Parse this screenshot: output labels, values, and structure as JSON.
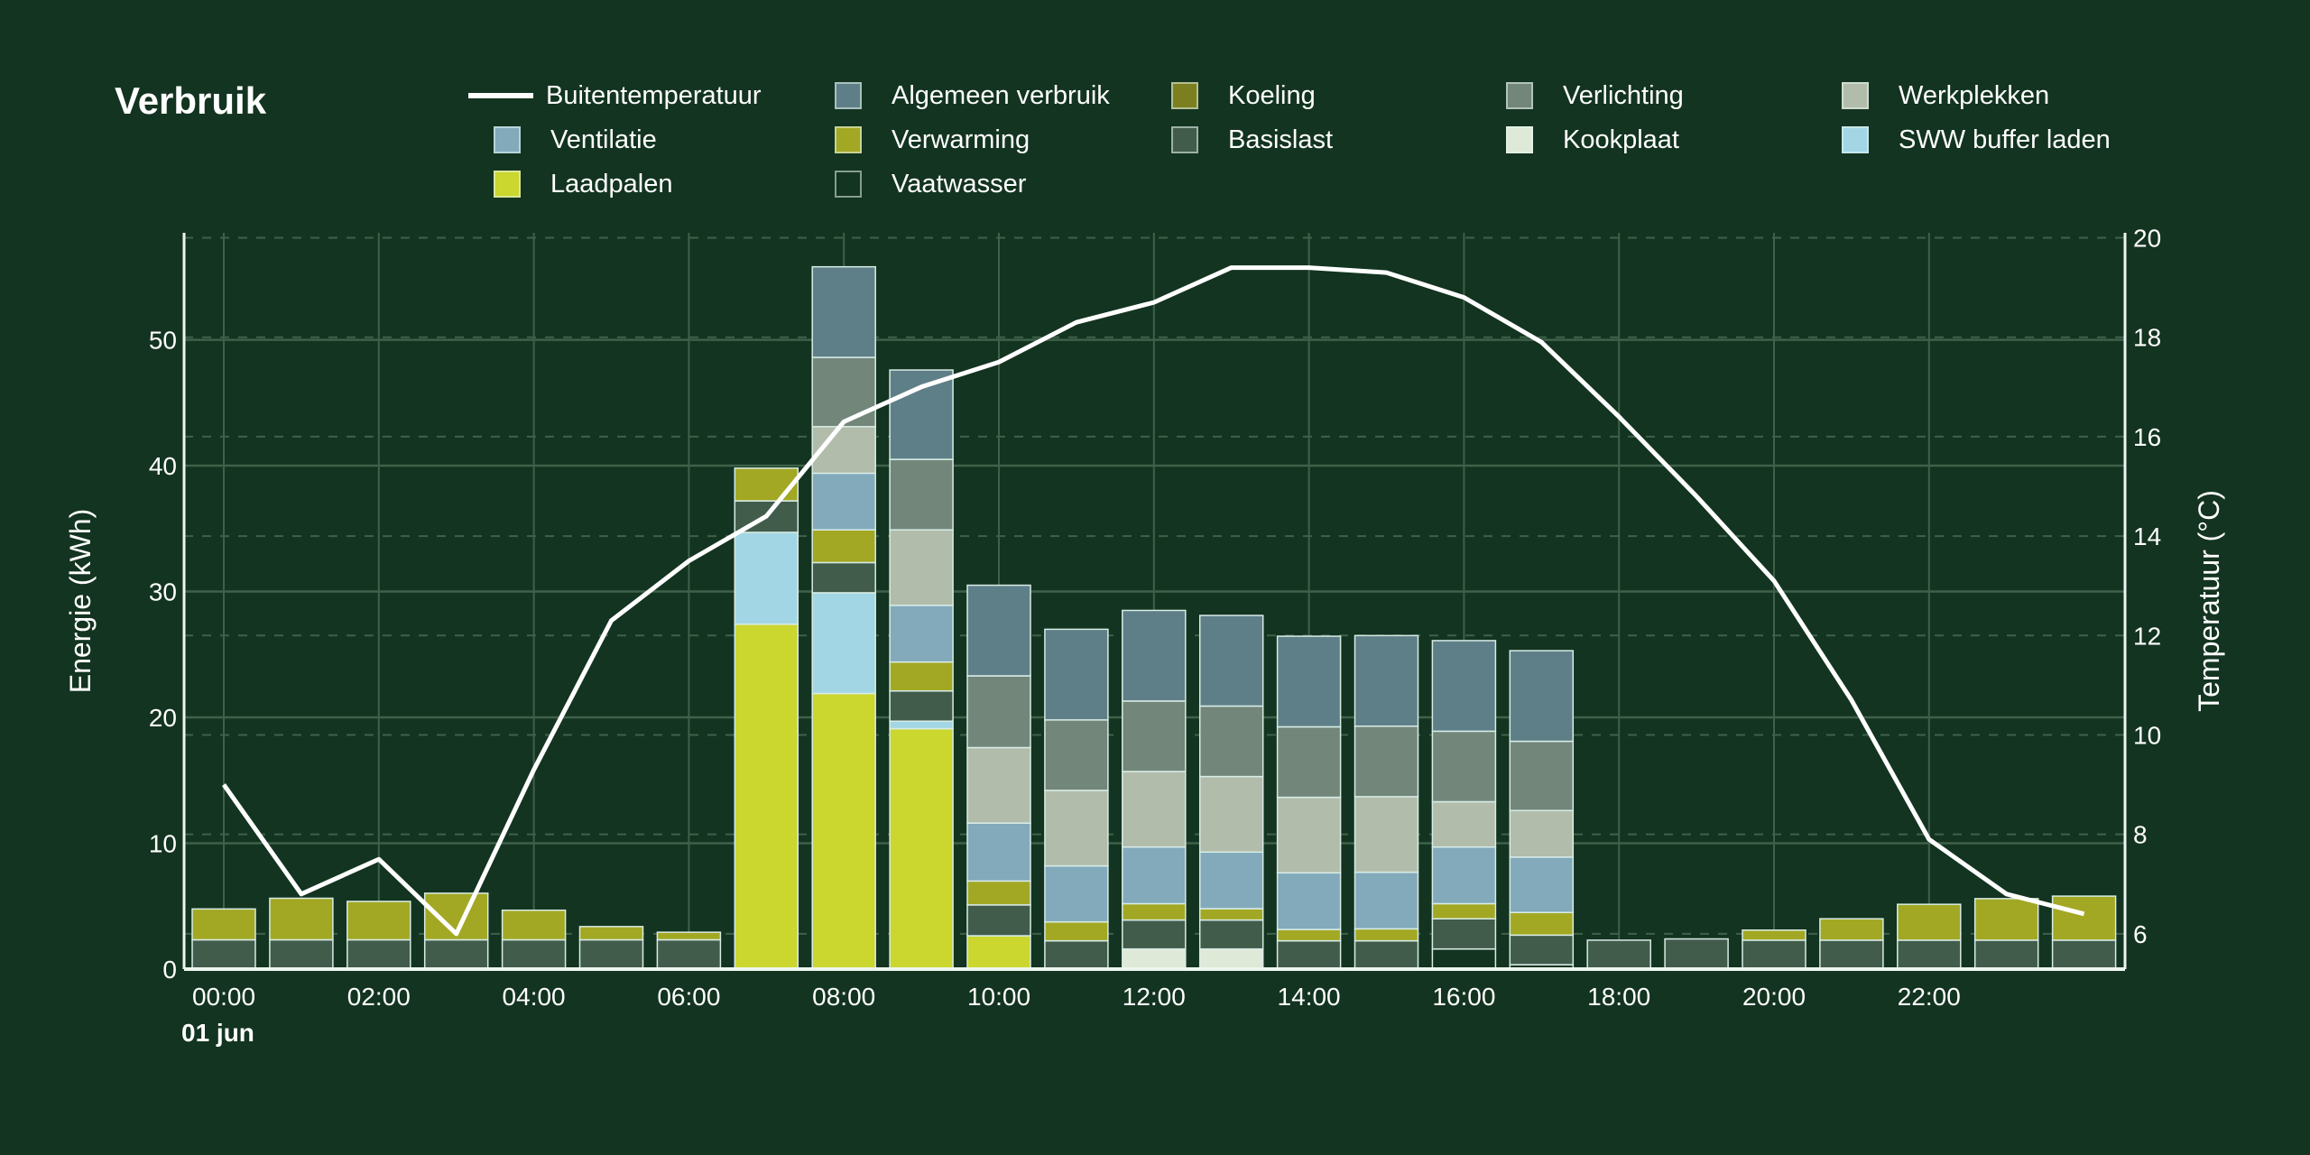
{
  "title": "Verbruik",
  "legend": [
    {
      "label": "Buitentemperatuur",
      "type": "line",
      "color": "#ffffff"
    },
    {
      "label": "Algemeen verbruik",
      "color": "#5f7f88"
    },
    {
      "label": "Koeling",
      "color": "#7b7f1f"
    },
    {
      "label": "Verlichting",
      "color": "#72867a"
    },
    {
      "label": "Werkplekken",
      "color": "#b2bcab"
    },
    {
      "label": "Ventilatie",
      "color": "#82aabb"
    },
    {
      "label": "Verwarming",
      "color": "#a2a823"
    },
    {
      "label": "Basislast",
      "color": "#425c4c"
    },
    {
      "label": "Kookplaat",
      "color": "#dfe9d8"
    },
    {
      "label": "SWW buffer laden",
      "color": "#a2d6e4"
    },
    {
      "label": "Laadpalen",
      "color": "#cbd62f"
    },
    {
      "label": "Vaatwasser",
      "color": "#133420"
    }
  ],
  "chart_data": {
    "type": "bar",
    "stacked": true,
    "title": "Verbruik",
    "xlabel": "",
    "x_tick_labels": [
      "00:00",
      "02:00",
      "04:00",
      "06:00",
      "08:00",
      "10:00",
      "12:00",
      "14:00",
      "16:00",
      "18:00",
      "20:00",
      "22:00"
    ],
    "date_label": "01 jun",
    "categories": [
      "00:00",
      "01:00",
      "02:00",
      "03:00",
      "04:00",
      "05:00",
      "06:00",
      "07:00",
      "08:00",
      "09:00",
      "10:00",
      "11:00",
      "12:00",
      "13:00",
      "14:00",
      "15:00",
      "16:00",
      "17:00",
      "18:00",
      "19:00",
      "20:00",
      "21:00",
      "22:00",
      "23:00",
      "24:00"
    ],
    "ylabel": "Energie (kWh)",
    "ylim": [
      0,
      58.5
    ],
    "y_ticks": [
      0,
      10,
      20,
      30,
      40,
      50
    ],
    "y2label": "Temperatuur (°C)",
    "y2lim": [
      5.29,
      20.1
    ],
    "y2_ticks": [
      6,
      8,
      10,
      12,
      14,
      16,
      18,
      20
    ],
    "grid": true,
    "legend_position": "top",
    "series": [
      {
        "name": "Vaatwasser",
        "color": "#133420",
        "values": [
          0,
          0,
          0,
          0,
          0,
          0,
          0,
          0,
          0,
          0,
          0,
          0,
          0,
          0,
          0,
          0,
          1.6,
          0.35,
          0,
          0,
          0,
          0,
          0,
          0,
          0
        ]
      },
      {
        "name": "Kookplaat",
        "color": "#dfe9d8",
        "values": [
          0,
          0,
          0,
          0,
          0,
          0,
          0,
          0,
          0,
          0,
          0,
          0,
          1.6,
          1.6,
          0,
          0,
          0,
          0,
          0,
          0,
          0,
          0,
          0,
          0,
          0
        ]
      },
      {
        "name": "Laadpalen",
        "color": "#cbd62f",
        "values": [
          0,
          0,
          0,
          0,
          0,
          0,
          0,
          27.4,
          21.9,
          19.1,
          2.65,
          0,
          0,
          0,
          0,
          0,
          0,
          0,
          0,
          0,
          0,
          0,
          0,
          0,
          0
        ]
      },
      {
        "name": "SWW buffer laden",
        "color": "#a2d6e4",
        "values": [
          0,
          0,
          0,
          0,
          0,
          0,
          0,
          7.3,
          8.0,
          0.6,
          0,
          0,
          0,
          0,
          0,
          0,
          0,
          0,
          0,
          0,
          0,
          0,
          0,
          0,
          0
        ]
      },
      {
        "name": "Basislast",
        "color": "#425c4c",
        "values": [
          2.33,
          2.33,
          2.33,
          2.33,
          2.33,
          2.33,
          2.33,
          2.5,
          2.4,
          2.4,
          2.45,
          2.25,
          2.3,
          2.3,
          2.25,
          2.25,
          2.4,
          2.35,
          2.3,
          2.4,
          2.3,
          2.3,
          2.3,
          2.3,
          2.3
        ]
      },
      {
        "name": "Koeling",
        "color": "#7b7f1f",
        "values": [
          0,
          0,
          0,
          0,
          0,
          0,
          0,
          0,
          0,
          0,
          0,
          0,
          0,
          0,
          0,
          0,
          0,
          0,
          0,
          0,
          0,
          0,
          0,
          0,
          0
        ]
      },
      {
        "name": "Verwarming",
        "color": "#a2a823",
        "values": [
          2.45,
          3.3,
          3.05,
          3.7,
          2.35,
          1.05,
          0.6,
          2.6,
          2.6,
          2.3,
          1.9,
          1.5,
          1.3,
          0.9,
          0.9,
          0.95,
          1.2,
          1.8,
          0,
          0,
          0.8,
          1.7,
          2.85,
          3.3,
          3.5
        ]
      },
      {
        "name": "Ventilatie",
        "color": "#82aabb",
        "values": [
          0,
          0,
          0,
          0,
          0,
          0,
          0,
          0,
          4.5,
          4.5,
          4.6,
          4.45,
          4.5,
          4.5,
          4.5,
          4.5,
          4.5,
          4.4,
          0,
          0,
          0,
          0,
          0,
          0,
          0
        ]
      },
      {
        "name": "Werkplekken",
        "color": "#b2bcab",
        "values": [
          0,
          0,
          0,
          0,
          0,
          0,
          0,
          0,
          3.7,
          6.0,
          6.0,
          6.0,
          6.0,
          6.0,
          6.0,
          6.0,
          3.6,
          3.7,
          0,
          0,
          0,
          0,
          0,
          0,
          0
        ]
      },
      {
        "name": "Verlichting",
        "color": "#72867a",
        "values": [
          0,
          0,
          0,
          0,
          0,
          0,
          0,
          0,
          5.5,
          5.6,
          5.7,
          5.6,
          5.6,
          5.6,
          5.6,
          5.6,
          5.6,
          5.5,
          0,
          0,
          0,
          0,
          0,
          0,
          0
        ]
      },
      {
        "name": "Algemeen verbruik",
        "color": "#5f7f88",
        "values": [
          0,
          0,
          0,
          0,
          0,
          0,
          0,
          0,
          7.2,
          7.1,
          7.2,
          7.2,
          7.2,
          7.2,
          7.2,
          7.2,
          7.2,
          7.2,
          0,
          0,
          0,
          0,
          0,
          0,
          0
        ]
      }
    ],
    "line": {
      "name": "Buitentemperatuur",
      "axis": "right",
      "color": "#ffffff",
      "values": [
        9.0,
        6.8,
        7.5,
        6.0,
        9.3,
        12.3,
        13.5,
        14.4,
        16.3,
        17.0,
        17.5,
        18.3,
        18.7,
        19.4,
        19.4,
        19.3,
        18.8,
        17.9,
        16.4,
        14.8,
        13.1,
        10.7,
        7.9,
        6.8,
        6.4
      ]
    }
  }
}
